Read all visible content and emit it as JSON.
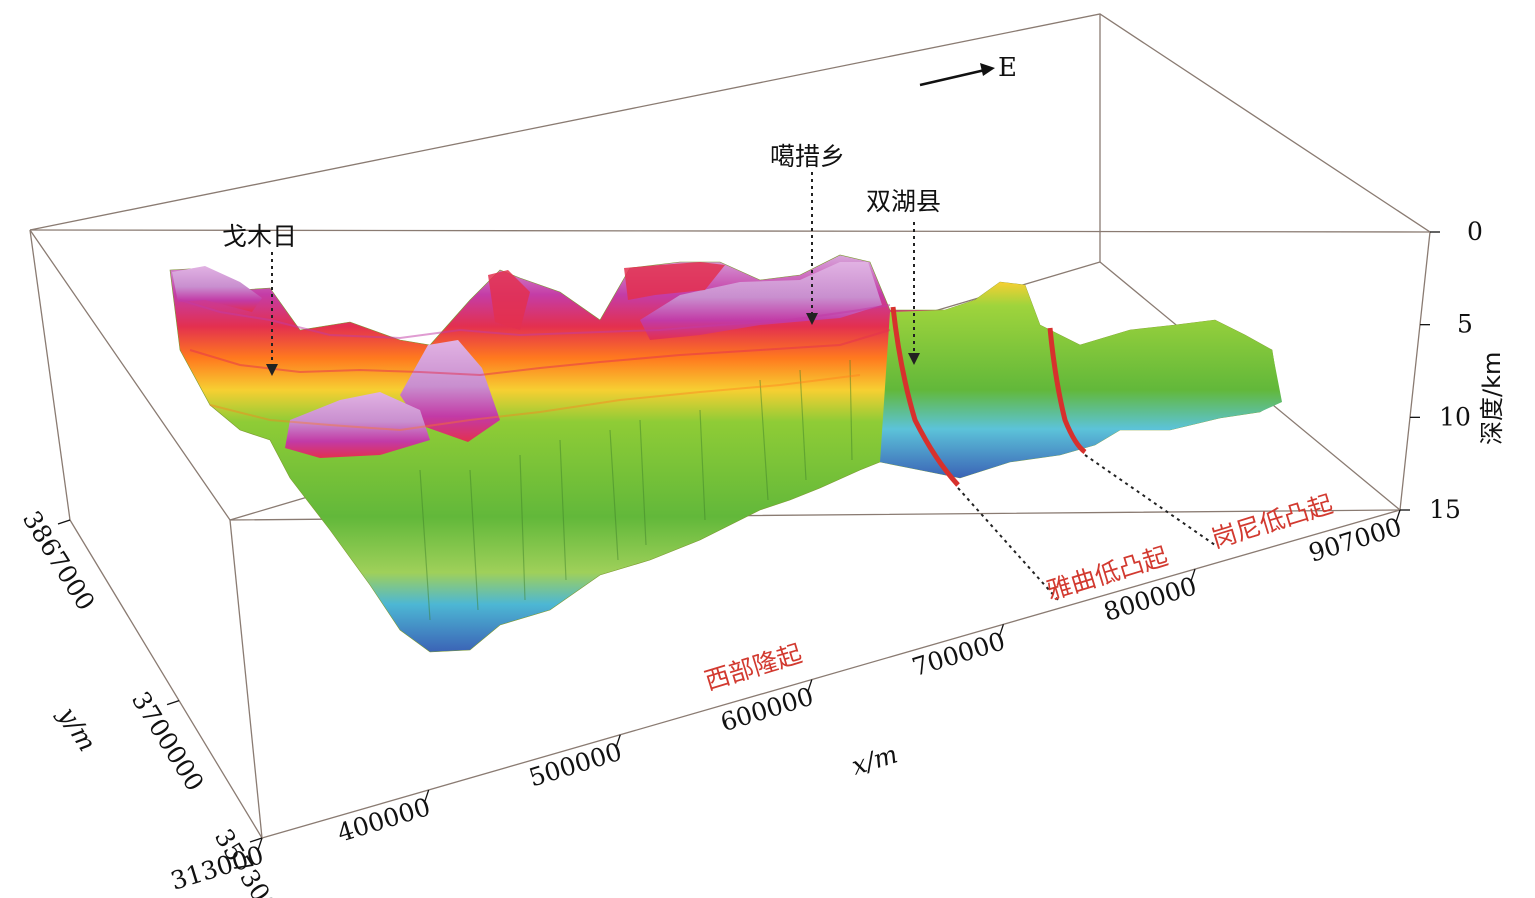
{
  "chart_data": {
    "type": "surface",
    "x_axis": {
      "label": "x/m",
      "ticks": [
        "313000",
        "400000",
        "500000",
        "600000",
        "700000",
        "800000",
        "907000"
      ],
      "range": [
        313000,
        907000
      ]
    },
    "y_axis": {
      "label": "y/m",
      "ticks": [
        "3867000",
        "3700000",
        "3573000"
      ],
      "range": [
        3573000,
        3867000
      ]
    },
    "z_axis": {
      "label": "深度/km",
      "ticks": [
        "0",
        "5",
        "10",
        "15"
      ],
      "range": [
        0,
        15
      ]
    },
    "north_arrow": "E",
    "places": [
      "戈木日",
      "噶措乡",
      "双湖县"
    ],
    "regions": [
      "西部隆起",
      "雅曲低凸起",
      "岗尼低凸起"
    ],
    "colormap": [
      "#c98fcf",
      "#c23aa6",
      "#e3304f",
      "#ff7a1e",
      "#f7cf32",
      "#8fcc36",
      "#62b83a",
      "#4db7d4",
      "#3b63b6"
    ]
  }
}
